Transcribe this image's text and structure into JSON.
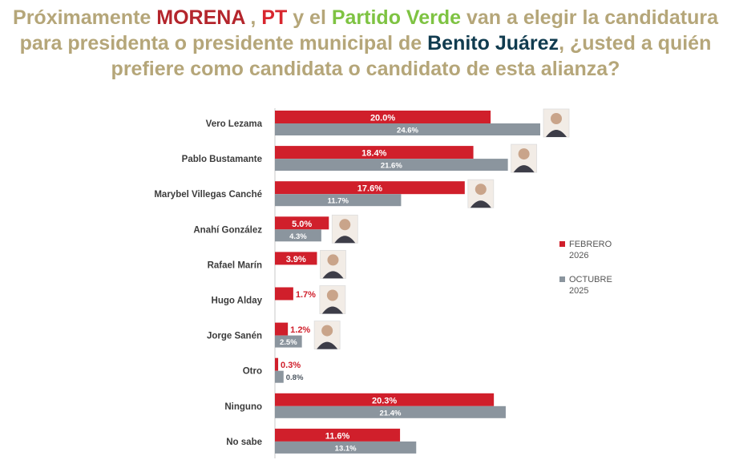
{
  "title": {
    "line1_prefix": "Próximamente ",
    "party1": "MORENA",
    "sep1": " , ",
    "party2": "PT",
    "sep2": " y el ",
    "party3": "Partido Verde",
    "line1_suffix": " van a elegir la candidatura",
    "line2_prefix": "para presidenta o presidente municipal de ",
    "place": "Benito Juárez",
    "line2_suffix": ", ¿usted a quién",
    "line3": "prefiere como candidata o candidato de esta alianza?"
  },
  "colors": {
    "febrero": "#d01f2b",
    "octubre": "#8b959e",
    "title_text": "#b5a679"
  },
  "chart_data": {
    "type": "bar",
    "orientation": "horizontal",
    "categories": [
      "Vero Lezama",
      "Pablo Bustamante",
      "Marybel Villegas Canché",
      "Anahí González",
      "Rafael Marín",
      "Hugo Alday",
      "Jorge Sanén",
      "Otro",
      "Ninguno",
      "No sabe"
    ],
    "series": [
      {
        "name": "FEBRERO 2026",
        "values": [
          20.0,
          18.4,
          17.6,
          5.0,
          3.9,
          1.7,
          1.2,
          0.3,
          20.3,
          11.6
        ],
        "labels": [
          "20.0%",
          "18.4%",
          "17.6%",
          "5.0%",
          "3.9%",
          "1.7%",
          "1.2%",
          "0.3%",
          "20.3%",
          "11.6%"
        ]
      },
      {
        "name": "OCTUBRE 2025",
        "values": [
          24.6,
          21.6,
          11.7,
          4.3,
          null,
          null,
          2.5,
          0.8,
          21.4,
          13.1
        ],
        "labels": [
          "24.6%",
          "21.6%",
          "11.7%",
          "4.3%",
          null,
          null,
          "2.5%",
          "0.8%",
          "21.4%",
          "13.1%"
        ]
      }
    ],
    "photo_candidates": [
      "Vero Lezama",
      "Pablo Bustamante",
      "Marybel Villegas Canché",
      "Anahí González",
      "Rafael Marín",
      "Hugo Alday",
      "Jorge Sanén"
    ],
    "xlim": [
      0,
      25
    ],
    "legend": {
      "position": "right",
      "entries": [
        {
          "line1": "FEBRERO",
          "line2": "2026"
        },
        {
          "line1": "OCTUBRE",
          "line2": "2025"
        }
      ]
    }
  }
}
